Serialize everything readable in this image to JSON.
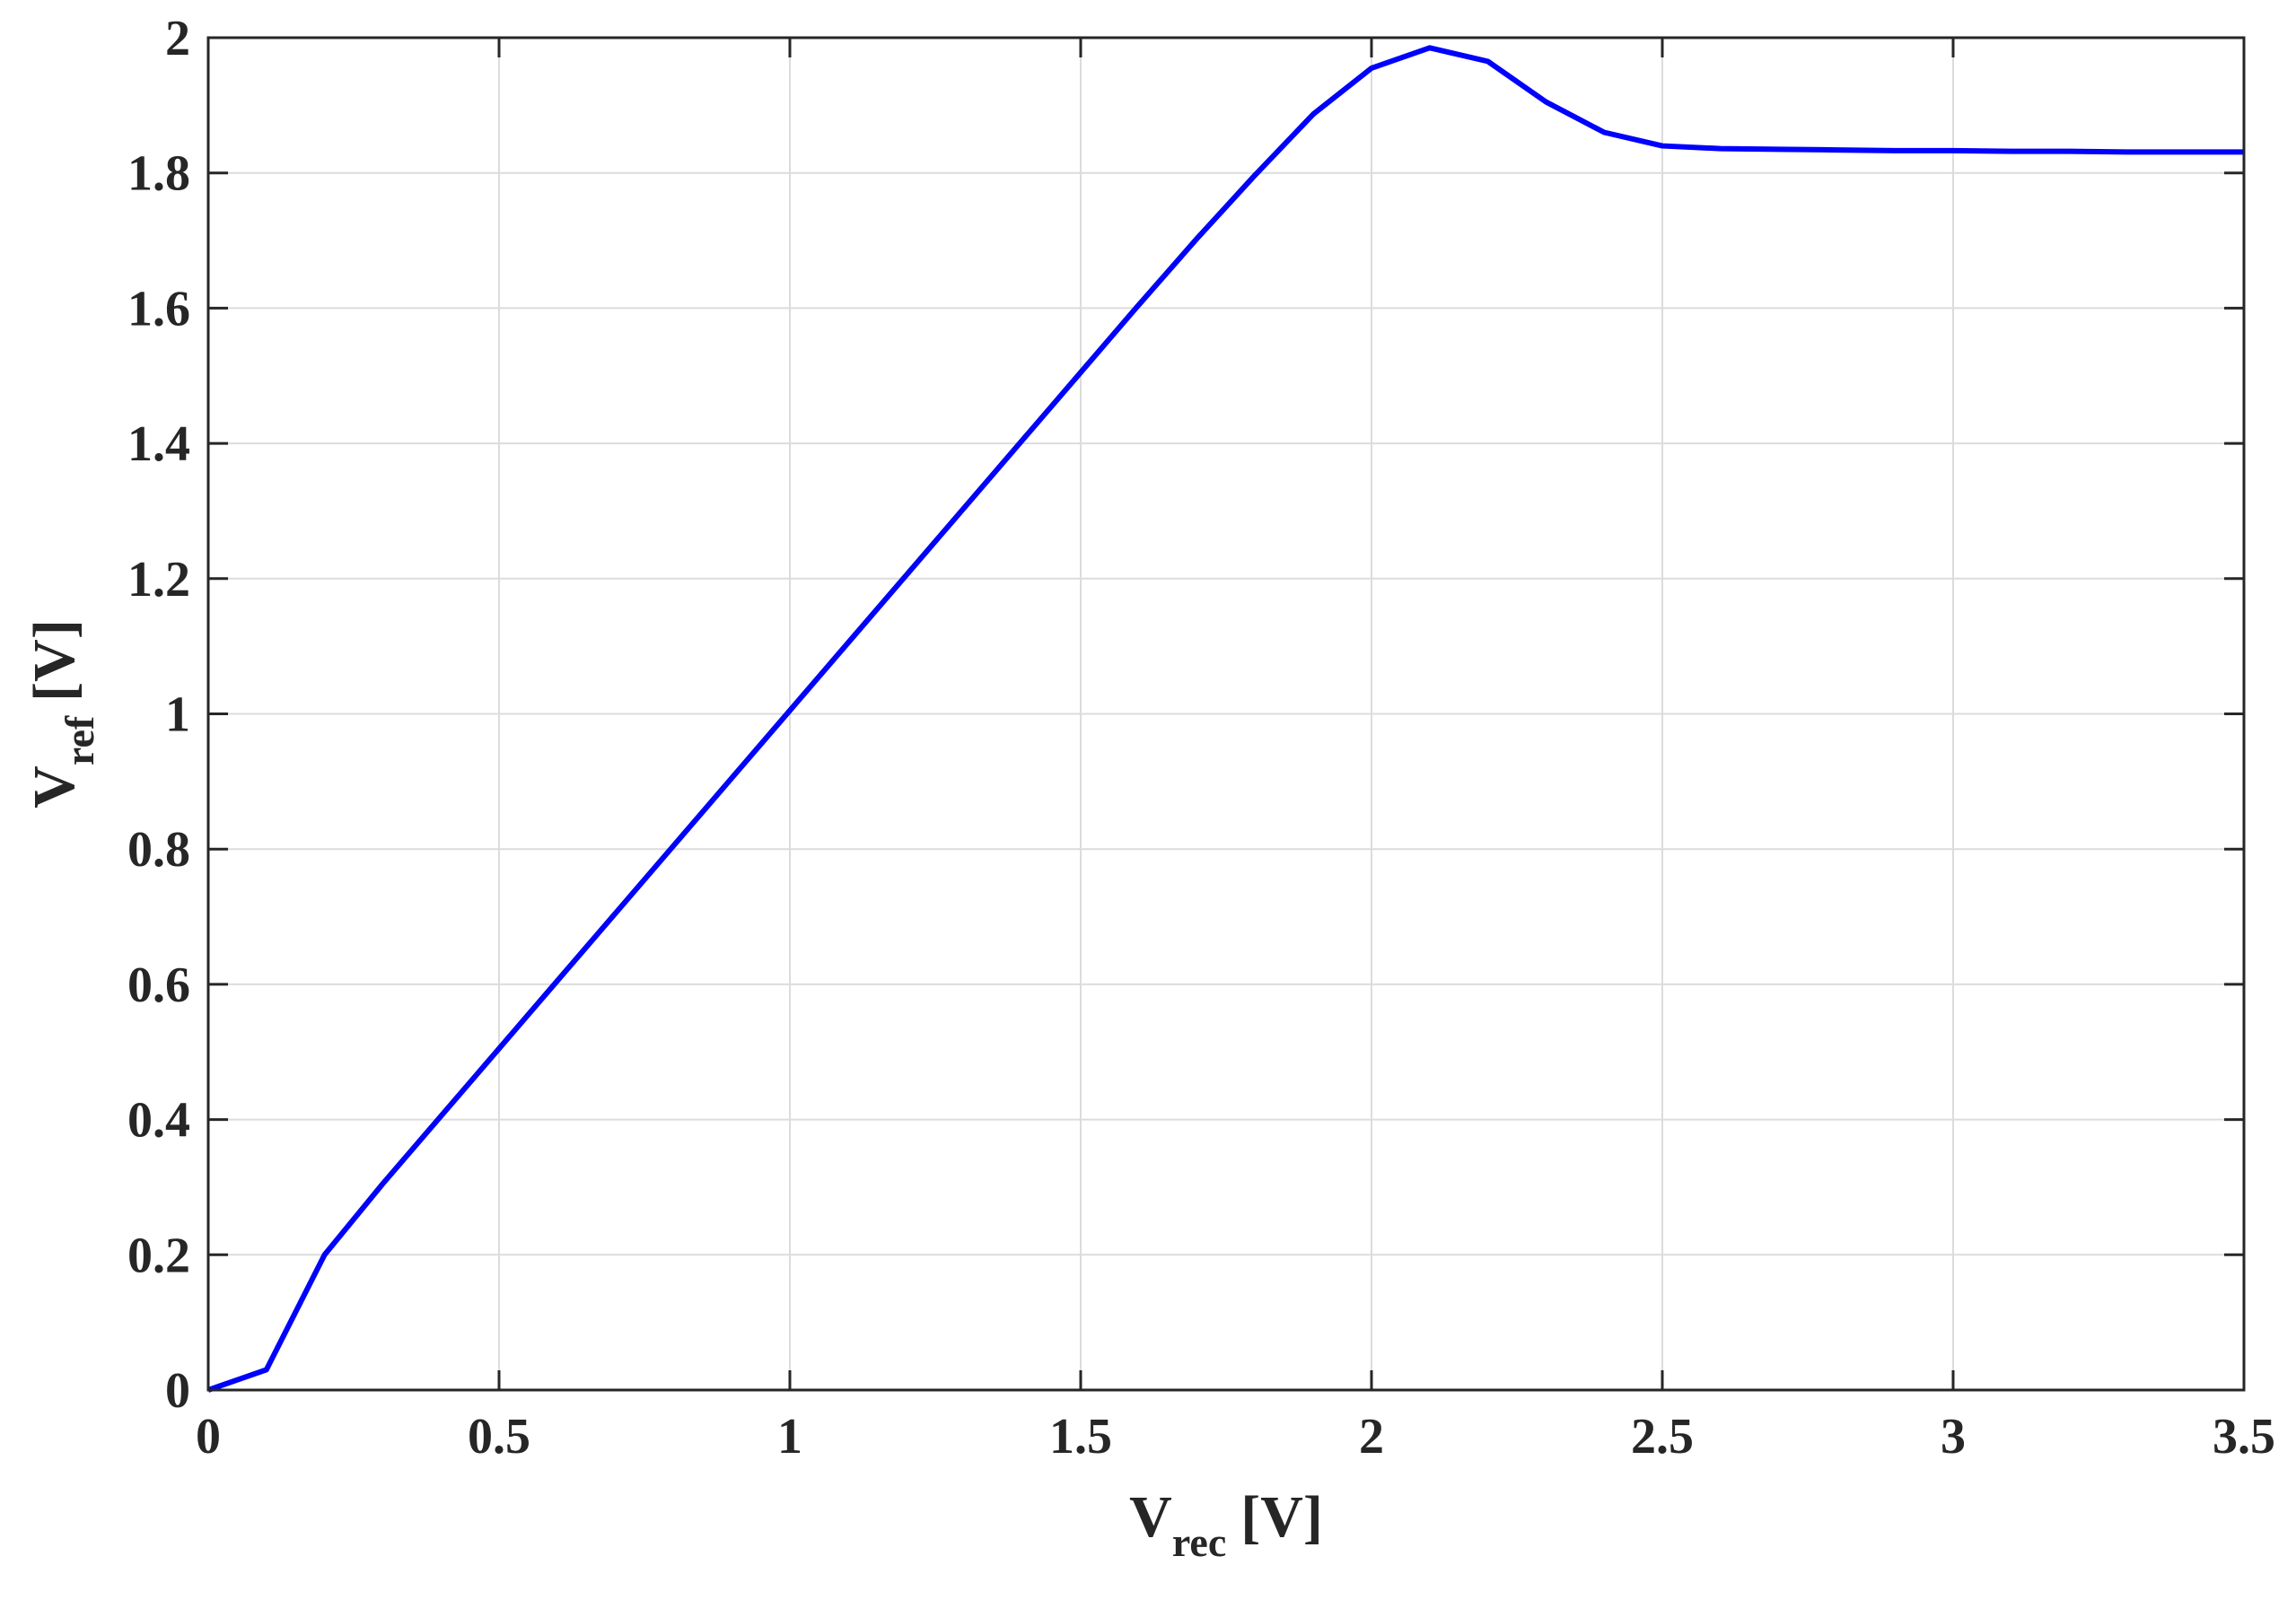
{
  "chart_data": {
    "type": "line",
    "xlabel": {
      "main": "V",
      "sub": "rec",
      "unit": "[V]"
    },
    "ylabel": {
      "main": "V",
      "sub": "ref",
      "unit": "[V]"
    },
    "x": [
      0,
      0.1,
      0.2,
      0.3,
      0.4,
      0.5,
      0.6,
      0.7,
      0.8,
      0.9,
      1.0,
      1.1,
      1.2,
      1.3,
      1.4,
      1.5,
      1.6,
      1.7,
      1.8,
      1.9,
      2.0,
      2.1,
      2.2,
      2.3,
      2.4,
      2.5,
      2.6,
      2.7,
      2.8,
      2.9,
      3.0,
      3.1,
      3.2,
      3.3,
      3.4,
      3.5
    ],
    "values": [
      0,
      0.03,
      0.2,
      0.305,
      0.405,
      0.505,
      0.605,
      0.705,
      0.805,
      0.905,
      1.005,
      1.105,
      1.205,
      1.305,
      1.405,
      1.505,
      1.605,
      1.703,
      1.797,
      1.887,
      1.955,
      1.985,
      1.965,
      1.905,
      1.86,
      1.84,
      1.836,
      1.835,
      1.834,
      1.833,
      1.833,
      1.832,
      1.832,
      1.831,
      1.831,
      1.831
    ],
    "color": "#0000ff",
    "xlim": [
      0,
      3.5
    ],
    "xticks": [
      0,
      0.5,
      1,
      1.5,
      2,
      2.5,
      3,
      3.5
    ],
    "ylim": [
      0,
      2
    ],
    "yticks": [
      0,
      0.2,
      0.4,
      0.6,
      0.8,
      1,
      1.2,
      1.4,
      1.6,
      1.8,
      2
    ],
    "grid": true
  }
}
